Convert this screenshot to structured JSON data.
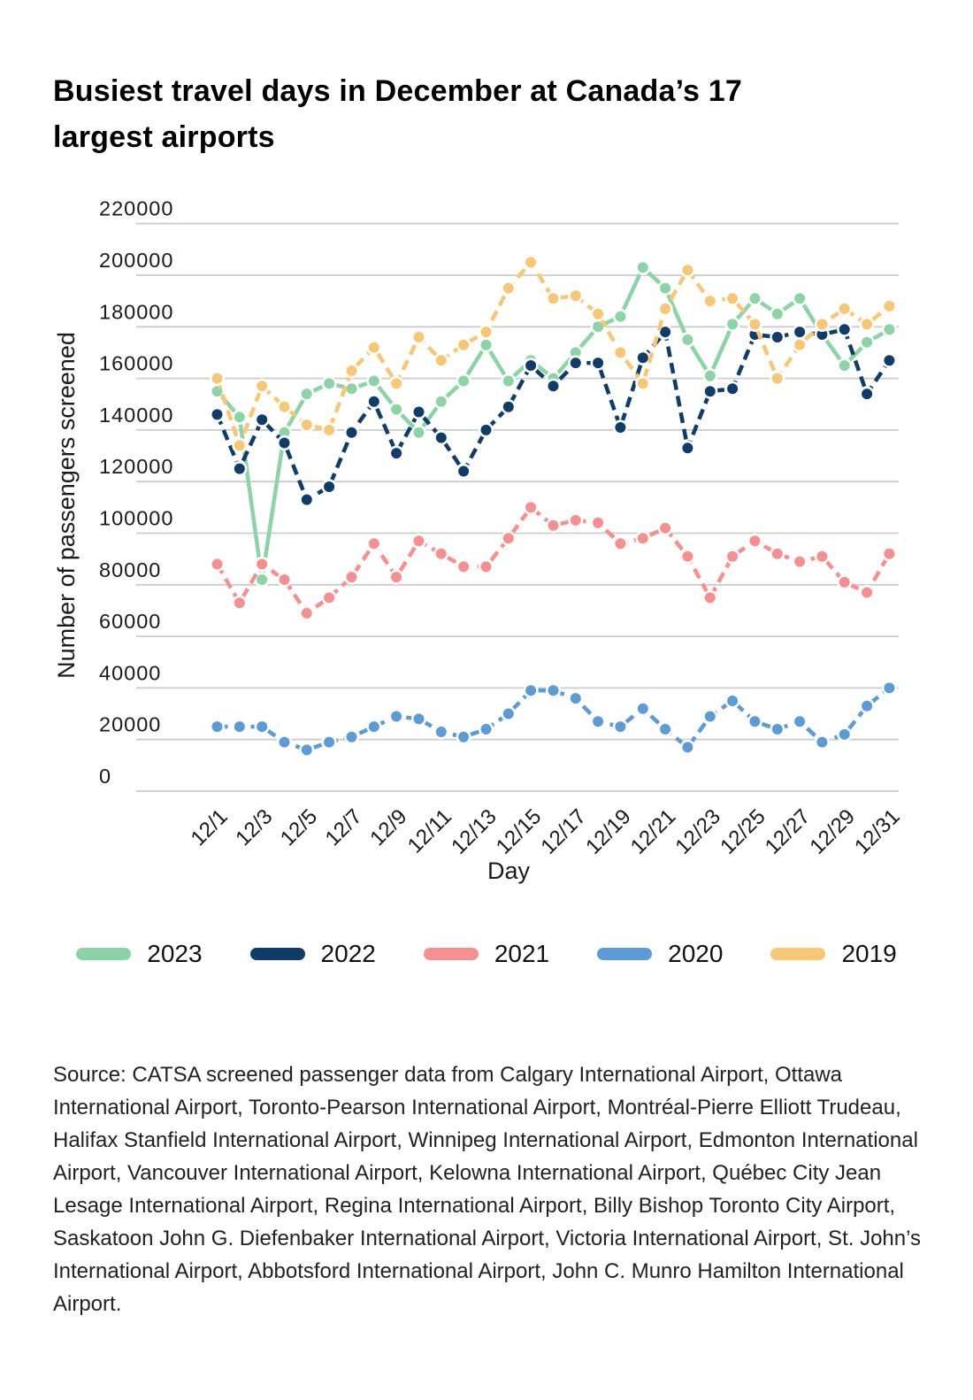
{
  "title": {
    "line1": "Busiest travel days in December at Canada’s 17",
    "line2": "largest airports"
  },
  "chart_data": {
    "type": "line",
    "xlabel": "Day",
    "ylabel": "Number of passengers screened",
    "ylim": [
      0,
      220000
    ],
    "yticks": [
      0,
      20000,
      40000,
      60000,
      80000,
      100000,
      120000,
      140000,
      160000,
      180000,
      200000,
      220000
    ],
    "grid": "horizontal",
    "legend_position": "bottom",
    "categories": [
      "12/1",
      "12/2",
      "12/3",
      "12/4",
      "12/5",
      "12/6",
      "12/7",
      "12/8",
      "12/9",
      "12/10",
      "12/11",
      "12/12",
      "12/13",
      "12/14",
      "12/15",
      "12/16",
      "12/17",
      "12/18",
      "12/19",
      "12/20",
      "12/21",
      "12/22",
      "12/23",
      "12/24",
      "12/25",
      "12/26",
      "12/27",
      "12/28",
      "12/29",
      "12/30",
      "12/31"
    ],
    "x_ticks_shown_every": 2,
    "series": [
      {
        "name": "2023",
        "color": "#8bd4a5",
        "line_style": "solid",
        "values": [
          155000,
          145000,
          82000,
          139000,
          154000,
          158000,
          156000,
          159000,
          148000,
          139000,
          151000,
          159000,
          173000,
          159000,
          167000,
          160000,
          170000,
          180000,
          184000,
          203000,
          195000,
          175000,
          161000,
          181000,
          191000,
          185000,
          191000,
          177000,
          165000,
          174000,
          179000
        ]
      },
      {
        "name": "2022",
        "color": "#0e3d6b",
        "line_style": "dashed",
        "values": [
          146000,
          125000,
          144000,
          135000,
          113000,
          118000,
          139000,
          151000,
          131000,
          147000,
          137000,
          124000,
          140000,
          149000,
          165000,
          157000,
          166000,
          166000,
          141000,
          168000,
          178000,
          133000,
          155000,
          156000,
          177000,
          176000,
          178000,
          177000,
          179000,
          154000,
          167000
        ]
      },
      {
        "name": "2021",
        "color": "#f78f8f",
        "line_style": "dashed",
        "values": [
          88000,
          73000,
          88000,
          82000,
          69000,
          75000,
          83000,
          96000,
          83000,
          97000,
          92000,
          87000,
          87000,
          98000,
          110000,
          103000,
          105000,
          104000,
          96000,
          98000,
          102000,
          91000,
          75000,
          91000,
          97000,
          92000,
          89000,
          91000,
          81000,
          77000,
          92000
        ]
      },
      {
        "name": "2020",
        "color": "#5b9bd8",
        "line_style": "dashed",
        "values": [
          25000,
          25000,
          25000,
          19000,
          16000,
          19000,
          21000,
          25000,
          29000,
          28000,
          23000,
          21000,
          24000,
          30000,
          39000,
          39000,
          36000,
          27000,
          25000,
          32000,
          24000,
          17000,
          29000,
          35000,
          27000,
          24000,
          27000,
          19000,
          22000,
          33000,
          40000
        ]
      },
      {
        "name": "2019",
        "color": "#f8c773",
        "line_style": "dashed",
        "values": [
          160000,
          134000,
          157000,
          149000,
          142000,
          140000,
          163000,
          172000,
          158000,
          176000,
          167000,
          173000,
          178000,
          195000,
          205000,
          191000,
          192000,
          185000,
          170000,
          158000,
          187000,
          202000,
          190000,
          191000,
          181000,
          160000,
          173000,
          181000,
          187000,
          181000,
          188000
        ]
      }
    ]
  },
  "source": "Source: CATSA screened passenger data from Calgary International Airport, Ottawa International Airport, Toronto-Pearson International Airport, Montréal-Pierre Elliott Trudeau, Halifax Stanfield International Airport, Winnipeg International Airport, Edmonton International Airport, Vancouver International Airport, Kelowna International Airport, Québec City Jean Lesage International Airport, Regina International Airport, Billy Bishop Toronto City Airport, Saskatoon John G. Diefenbaker International Airport, Victoria International Airport, St. John’s International Airport, Abbotsford International Airport, John C. Munro Hamilton International Airport."
}
